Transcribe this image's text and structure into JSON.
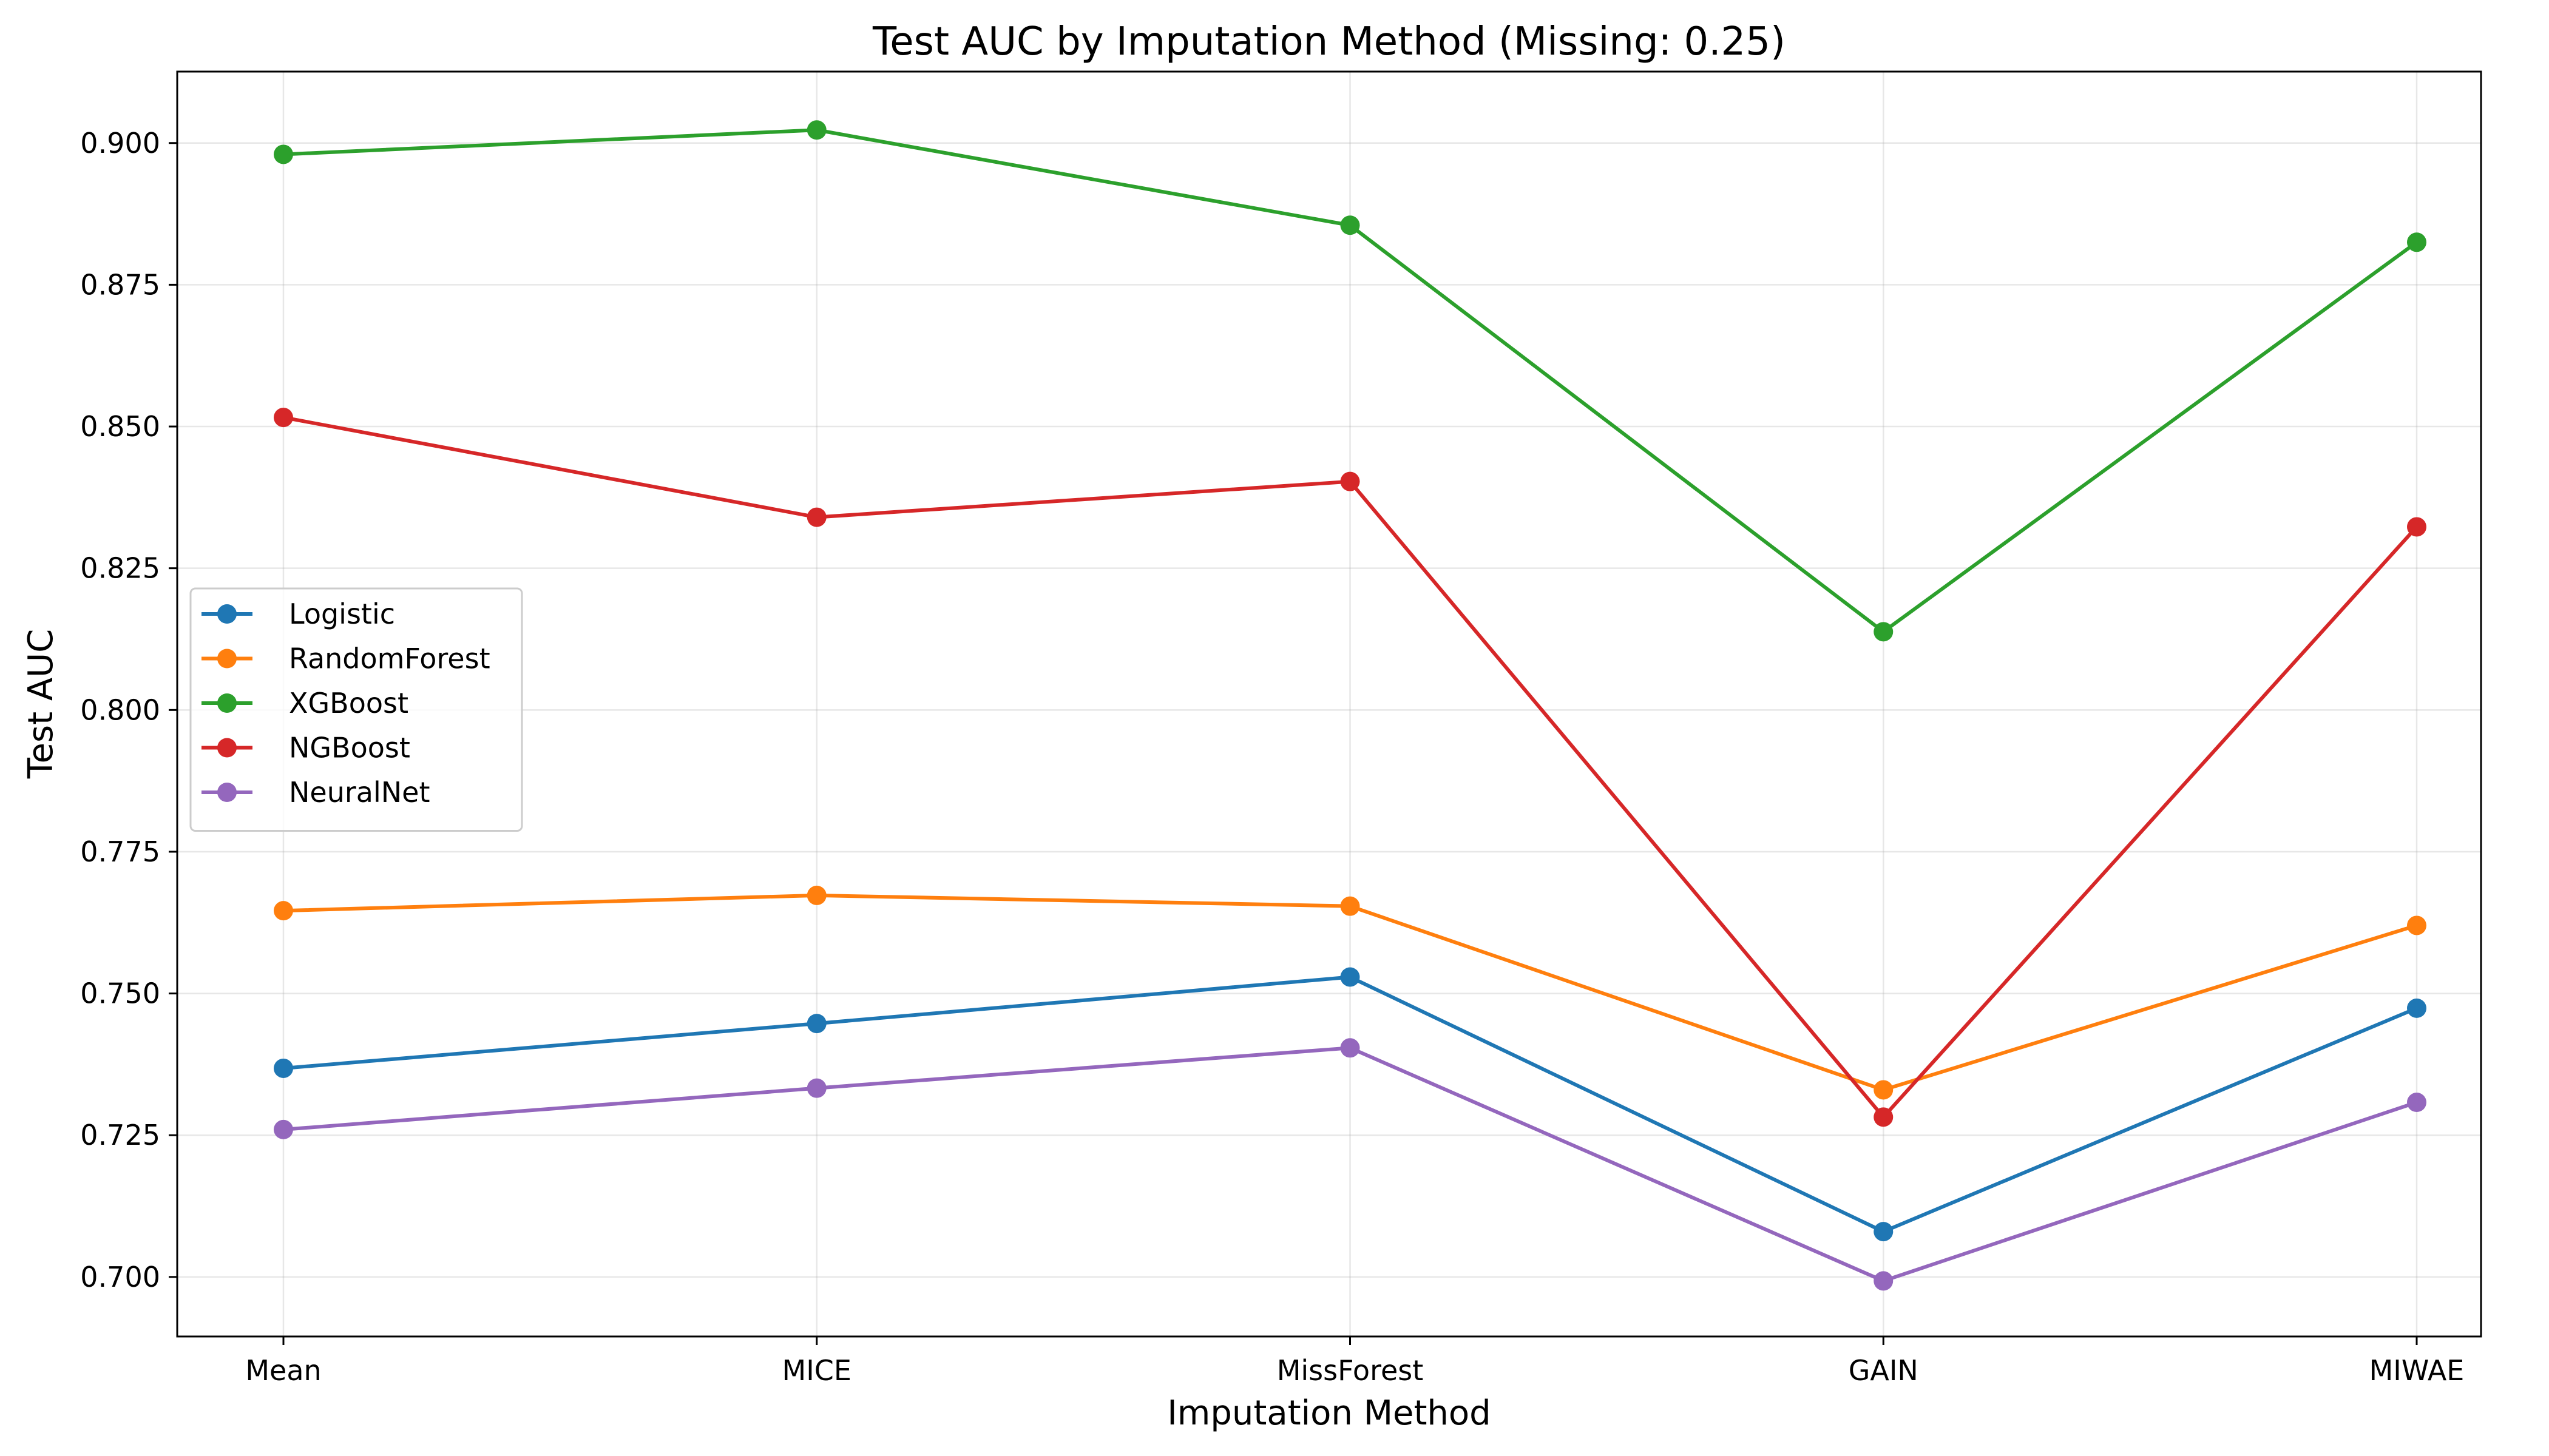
{
  "chart_data": {
    "type": "line",
    "title": "Test AUC by Imputation Method (Missing: 0.25)",
    "xlabel": "Imputation Method",
    "ylabel": "Test AUC",
    "categories": [
      "Mean",
      "MICE",
      "MissForest",
      "GAIN",
      "MIWAE"
    ],
    "ylim": [
      0.6895,
      0.9126
    ],
    "yticks": [
      0.7,
      0.725,
      0.75,
      0.775,
      0.8,
      0.825,
      0.85,
      0.875,
      0.9
    ],
    "ytick_labels": [
      "0.700",
      "0.725",
      "0.750",
      "0.775",
      "0.800",
      "0.825",
      "0.850",
      "0.875",
      "0.900"
    ],
    "grid": true,
    "legend_position": "center-left",
    "series": [
      {
        "name": "Logistic",
        "color": "#1f77b4",
        "values": [
          0.7368,
          0.7447,
          0.7529,
          0.708,
          0.7474
        ]
      },
      {
        "name": "RandomForest",
        "color": "#ff7f0e",
        "values": [
          0.7646,
          0.7673,
          0.7654,
          0.733,
          0.762
        ]
      },
      {
        "name": "XGBoost",
        "color": "#2ca02c",
        "values": [
          0.898,
          0.9023,
          0.8855,
          0.8138,
          0.8825
        ]
      },
      {
        "name": "NGBoost",
        "color": "#d62728",
        "values": [
          0.8516,
          0.834,
          0.8403,
          0.7282,
          0.8323
        ]
      },
      {
        "name": "NeuralNet",
        "color": "#9467bd",
        "values": [
          0.726,
          0.7333,
          0.7404,
          0.6993,
          0.7308
        ]
      }
    ]
  }
}
